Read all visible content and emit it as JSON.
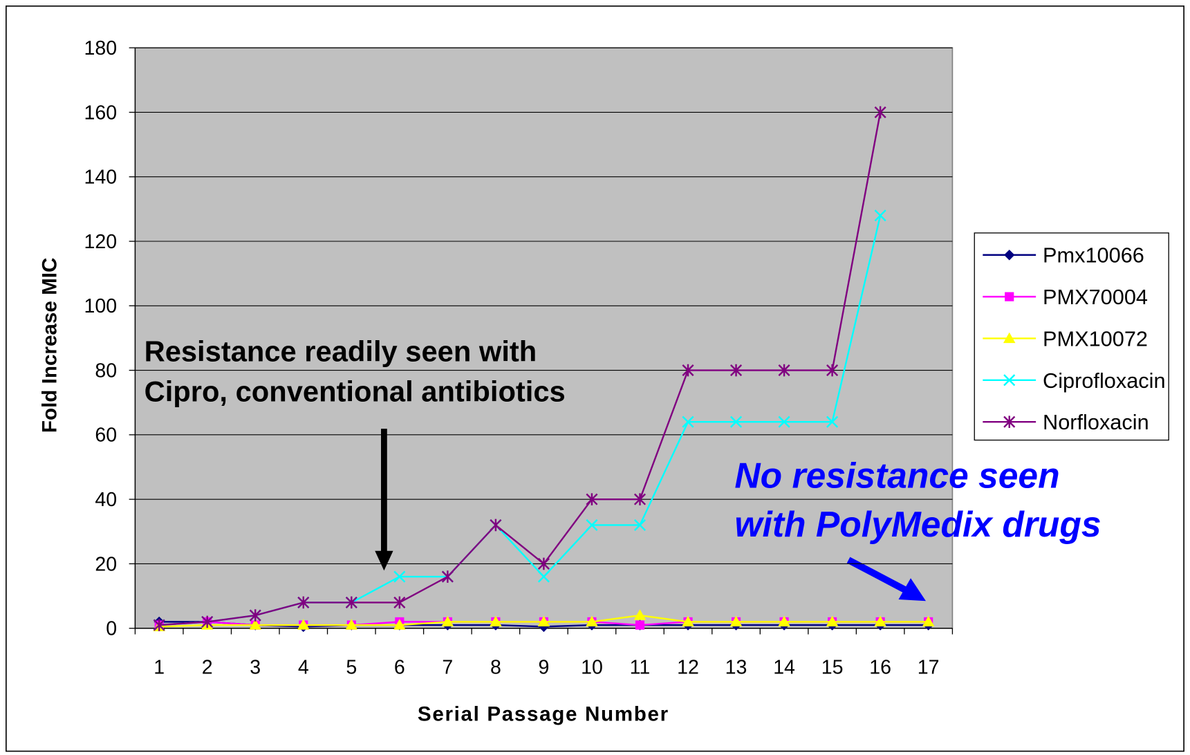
{
  "chart_data": {
    "type": "line",
    "x_label": "Serial Passage Number",
    "y_label": "Fold Increase MIC",
    "categories": [
      "1",
      "2",
      "3",
      "4",
      "5",
      "6",
      "7",
      "8",
      "9",
      "10",
      "11",
      "12",
      "13",
      "14",
      "15",
      "16",
      "17"
    ],
    "series": [
      {
        "name": "Pmx10066",
        "color": "#000080",
        "marker": "diamond",
        "values": [
          2,
          2,
          1,
          0.5,
          1,
          1,
          1,
          1,
          0.5,
          1,
          1,
          1,
          1,
          1,
          1,
          1,
          1
        ]
      },
      {
        "name": "PMX70004",
        "color": "#ff00ff",
        "marker": "square",
        "values": [
          1,
          2,
          1,
          1,
          1,
          2,
          2,
          2,
          2,
          2,
          1,
          2,
          2,
          2,
          2,
          2,
          2
        ]
      },
      {
        "name": "PMX10072",
        "color": "#ffff00",
        "marker": "triangle",
        "values": [
          0.5,
          1,
          1,
          1,
          1,
          1,
          2,
          2,
          2,
          2,
          4,
          2,
          2,
          2,
          2,
          2,
          2
        ]
      },
      {
        "name": "Ciprofloxacin",
        "color": "#00ffff",
        "marker": "x",
        "values": [
          1,
          2,
          4,
          8,
          8,
          16,
          16,
          32,
          16,
          32,
          32,
          64,
          64,
          64,
          64,
          128,
          null
        ]
      },
      {
        "name": "Norfloxacin",
        "color": "#800080",
        "marker": "star",
        "values": [
          1,
          2,
          4,
          8,
          8,
          8,
          16,
          32,
          20,
          40,
          40,
          80,
          80,
          80,
          80,
          160,
          null
        ]
      }
    ],
    "ylim": [
      0,
      180
    ],
    "yticks": [
      0,
      20,
      40,
      60,
      80,
      100,
      120,
      140,
      160,
      180
    ],
    "grid": true,
    "legend": "right",
    "annotations": [
      {
        "lines": [
          "Resistance readily seen with",
          "Cipro, conventional antibiotics"
        ],
        "color": "#000000"
      },
      {
        "lines": [
          "No resistance seen",
          "with PolyMedix drugs"
        ],
        "color": "#0000ff"
      }
    ]
  }
}
